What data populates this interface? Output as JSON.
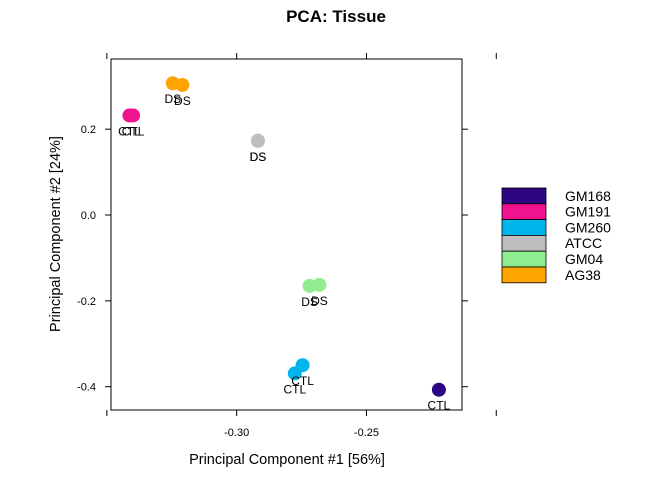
{
  "chart_data": {
    "type": "scatter",
    "title": "PCA: Tissue",
    "xlabel": "Principal Component #1 [56%]",
    "ylabel": "Principal Component #2 [24%]",
    "xlim": [
      -0.3484,
      -0.2132
    ],
    "ylim": [
      -0.4543,
      0.3635
    ],
    "x_ticks": [
      {
        "value": -0.3,
        "label": "-0.30"
      },
      {
        "value": -0.25,
        "label": "-0.25"
      }
    ],
    "x_minor_ticks": [
      -0.35,
      -0.2
    ],
    "y_ticks": [
      {
        "value": 0.2,
        "label": "0.2"
      },
      {
        "value": 0.0,
        "label": "0.0"
      },
      {
        "value": -0.2,
        "label": "-0.2"
      },
      {
        "value": -0.4,
        "label": "-0.4"
      }
    ],
    "grid": false,
    "legend_position": "right",
    "series": [
      {
        "name": "GM168",
        "color": "#2C0683",
        "points": [
          {
            "x": -0.2221,
            "y": -0.407,
            "label": "CTL"
          }
        ]
      },
      {
        "name": "GM191",
        "color": "#F0128F",
        "points": [
          {
            "x": -0.3413,
            "y": 0.232,
            "label": "CTL"
          },
          {
            "x": -0.3399,
            "y": 0.232,
            "label": "CTL"
          }
        ]
      },
      {
        "name": "GM260",
        "color": "#00B5EC",
        "points": [
          {
            "x": -0.2746,
            "y": -0.35,
            "label": "CTL"
          },
          {
            "x": -0.2776,
            "y": -0.369,
            "label": "CTL"
          }
        ]
      },
      {
        "name": "ATCC",
        "color": "#BEBEBE",
        "points": [
          {
            "x": -0.2918,
            "y": 0.173,
            "label": "DS"
          },
          {
            "x": -0.2918,
            "y": 0.173,
            "label": "DS"
          }
        ]
      },
      {
        "name": "GM04",
        "color": "#90EE90",
        "points": [
          {
            "x": -0.2719,
            "y": -0.165,
            "label": "DS"
          },
          {
            "x": -0.2681,
            "y": -0.163,
            "label": "DS"
          }
        ]
      },
      {
        "name": "AG38",
        "color": "#FFA500",
        "points": [
          {
            "x": -0.3246,
            "y": 0.307,
            "label": "DS"
          },
          {
            "x": -0.3209,
            "y": 0.303,
            "label": "DS"
          }
        ]
      }
    ]
  }
}
